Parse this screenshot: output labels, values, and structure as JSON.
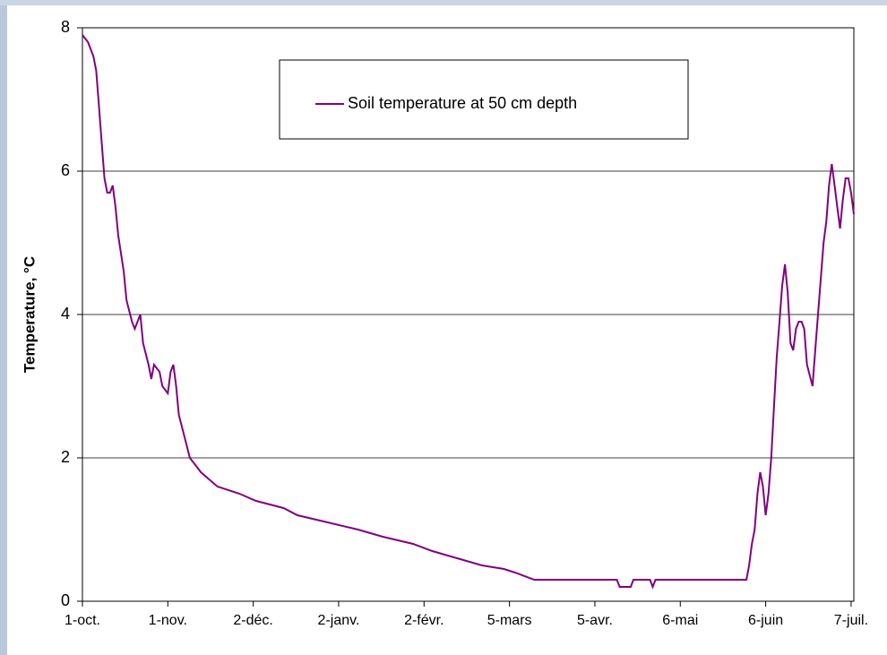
{
  "chart_data": {
    "type": "line",
    "ylabel": "Temperature, °C",
    "x": [
      0,
      2,
      4,
      5,
      6,
      7,
      8,
      9,
      10,
      11,
      12,
      13,
      15,
      16,
      18,
      19,
      21,
      22,
      24,
      25,
      26,
      28,
      29,
      31,
      32,
      33,
      34,
      35,
      37,
      39,
      41,
      43,
      46,
      49,
      57,
      63,
      73,
      78,
      89,
      100,
      109,
      120,
      127,
      136,
      145,
      153,
      157,
      164,
      194,
      195,
      199,
      200,
      206,
      207,
      208,
      241,
      242,
      243,
      244,
      245,
      246,
      247,
      248,
      249,
      250,
      251,
      252,
      253,
      254,
      255,
      256,
      257,
      258,
      259,
      260,
      261,
      262,
      263,
      265,
      266,
      267,
      268,
      269,
      270,
      271,
      272,
      273,
      274,
      275,
      276,
      277,
      278,
      279,
      280
    ],
    "series": [
      {
        "name": "Soil temperature at 50 cm depth",
        "color": "#800080",
        "values": [
          7.9,
          7.8,
          7.6,
          7.4,
          6.9,
          6.4,
          5.9,
          5.7,
          5.7,
          5.8,
          5.5,
          5.1,
          4.6,
          4.2,
          3.9,
          3.8,
          4.0,
          3.6,
          3.3,
          3.1,
          3.3,
          3.2,
          3.0,
          2.9,
          3.2,
          3.3,
          3.0,
          2.6,
          2.3,
          2.0,
          1.9,
          1.8,
          1.7,
          1.6,
          1.5,
          1.4,
          1.3,
          1.2,
          1.1,
          1.0,
          0.9,
          0.8,
          0.7,
          0.6,
          0.5,
          0.45,
          0.4,
          0.3,
          0.3,
          0.2,
          0.2,
          0.3,
          0.3,
          0.2,
          0.3,
          0.3,
          0.5,
          0.8,
          1.0,
          1.5,
          1.8,
          1.6,
          1.2,
          1.5,
          2.0,
          2.7,
          3.4,
          3.9,
          4.4,
          4.7,
          4.3,
          3.6,
          3.5,
          3.8,
          3.9,
          3.9,
          3.8,
          3.3,
          3.0,
          3.5,
          4.0,
          4.5,
          5.0,
          5.3,
          5.8,
          6.1,
          5.8,
          5.5,
          5.2,
          5.6,
          5.9,
          5.9,
          5.7,
          5.4
        ]
      }
    ],
    "xlim": [
      0,
      280
    ],
    "xticks": [
      {
        "value": 0,
        "label": "1-oct."
      },
      {
        "value": 31,
        "label": "1-nov."
      },
      {
        "value": 62,
        "label": "2-déc."
      },
      {
        "value": 93,
        "label": "2-janv."
      },
      {
        "value": 124,
        "label": "2-févr."
      },
      {
        "value": 155,
        "label": "5-mars"
      },
      {
        "value": 186,
        "label": "5-avr."
      },
      {
        "value": 217,
        "label": "6-mai"
      },
      {
        "value": 248,
        "label": "6-juin"
      },
      {
        "value": 279,
        "label": "7-juil."
      }
    ],
    "ylim": [
      0,
      8
    ],
    "yticks": [
      0,
      2,
      4,
      6,
      8
    ],
    "grid": true,
    "legend": "top"
  }
}
